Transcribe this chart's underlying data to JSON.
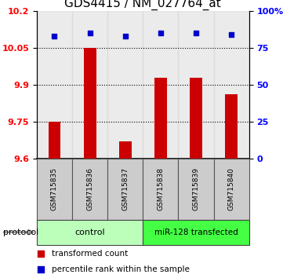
{
  "title": "GDS4415 / NM_027764_at",
  "samples": [
    "GSM715835",
    "GSM715836",
    "GSM715837",
    "GSM715838",
    "GSM715839",
    "GSM715840"
  ],
  "bar_values": [
    9.75,
    10.05,
    9.67,
    9.93,
    9.93,
    9.86
  ],
  "percentile_values": [
    83,
    85,
    83,
    85,
    85,
    84
  ],
  "ylim_left": [
    9.6,
    10.2
  ],
  "ylim_right": [
    0,
    100
  ],
  "yticks_left": [
    9.6,
    9.75,
    9.9,
    10.05,
    10.2
  ],
  "yticks_right": [
    0,
    25,
    50,
    75,
    100
  ],
  "ytick_labels_left": [
    "9.6",
    "9.75",
    "9.9",
    "10.05",
    "10.2"
  ],
  "ytick_labels_right": [
    "0",
    "25",
    "50",
    "75",
    "100%"
  ],
  "hlines": [
    10.05,
    9.9,
    9.75
  ],
  "bar_color": "#cc0000",
  "dot_color": "#0000cc",
  "control_color": "#bbffbb",
  "transfected_color": "#44ff44",
  "control_label": "control",
  "transfected_label": "miR-128 transfected",
  "protocol_label": "protocol",
  "legend_bar_label": "transformed count",
  "legend_dot_label": "percentile rank within the sample",
  "title_fontsize": 11,
  "tick_fontsize": 8,
  "sample_fontsize": 6.5,
  "legend_fontsize": 7.5
}
